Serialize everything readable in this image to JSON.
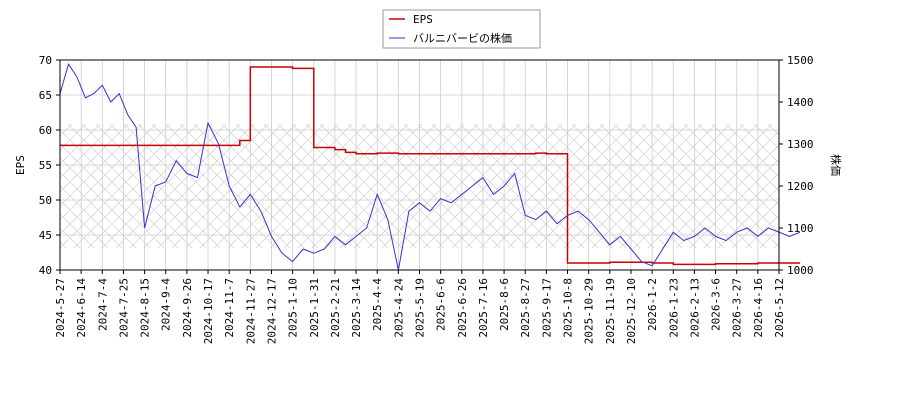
{
  "chart_data": {
    "type": "line",
    "legend_placement": "top-center",
    "grid": true,
    "hatched_band": true,
    "x_tick_labels": [
      "2024-5-27",
      "2024-6-14",
      "2024-7-4",
      "2024-7-25",
      "2024-8-15",
      "2024-9-4",
      "2024-9-26",
      "2024-10-17",
      "2024-11-7",
      "2024-11-27",
      "2024-12-17",
      "2025-1-10",
      "2025-1-31",
      "2025-2-21",
      "2025-3-14",
      "2025-4-4",
      "2025-4-24",
      "2025-5-19",
      "2025-6-6",
      "2025-6-26",
      "2025-7-16",
      "2025-8-6",
      "2025-8-27",
      "2025-9-17",
      "2025-10-8",
      "2025-10-29",
      "2025-11-19",
      "2025-12-10",
      "2026-1-2",
      "2026-1-23",
      "2026-2-13",
      "2026-3-6",
      "2026-3-27",
      "2026-4-16",
      "2026-5-12"
    ],
    "y_left": {
      "label": "EPS",
      "range": [
        40,
        70
      ],
      "ticks": [
        "40",
        "45",
        "50",
        "55",
        "60",
        "65",
        "70"
      ]
    },
    "y_right": {
      "label": "株価",
      "range": [
        1000,
        1500
      ],
      "ticks": [
        "1000",
        "1100",
        "1200",
        "1300",
        "1400",
        "1500"
      ]
    },
    "series": [
      {
        "name": "EPS",
        "color": "#cc0000",
        "axis": "left",
        "x": [
          0,
          2,
          4,
          6,
          8,
          8.5,
          9,
          10,
          11,
          12,
          13,
          13.5,
          14,
          15,
          16,
          17,
          18,
          19,
          20,
          21,
          22,
          22.5,
          23,
          24,
          25,
          26,
          27,
          28,
          29,
          30,
          31,
          32,
          33,
          34,
          35
        ],
        "y": [
          57.8,
          57.8,
          57.8,
          57.8,
          57.8,
          58.5,
          69.0,
          69.0,
          68.8,
          57.5,
          57.2,
          56.8,
          56.6,
          56.7,
          56.6,
          56.6,
          56.6,
          56.6,
          56.6,
          56.6,
          56.6,
          56.7,
          56.6,
          41.0,
          41.0,
          41.1,
          41.1,
          41.0,
          40.8,
          40.8,
          40.9,
          40.9,
          41.0,
          41.0,
          41.0
        ]
      },
      {
        "name": "バルニバービの株価",
        "color": "#3333cc",
        "axis": "right",
        "x": [
          0,
          0.4,
          0.8,
          1.2,
          1.6,
          2,
          2.4,
          2.8,
          3.2,
          3.6,
          4,
          4.5,
          5,
          5.5,
          6,
          6.5,
          7,
          7.5,
          8,
          8.5,
          9,
          9.5,
          10,
          10.5,
          11,
          11.5,
          12,
          12.5,
          13,
          13.5,
          14,
          14.5,
          15,
          15.5,
          16,
          16.5,
          17,
          17.5,
          18,
          18.5,
          19,
          19.5,
          20,
          20.5,
          21,
          21.5,
          22,
          22.5,
          23,
          23.5,
          24,
          24.5,
          25,
          25.5,
          26,
          26.5,
          27,
          27.5,
          28,
          28.5,
          29,
          29.5,
          30,
          30.5,
          31,
          31.5,
          32,
          32.5,
          33,
          33.5,
          34,
          34.5,
          35
        ],
        "y": [
          1420,
          1490,
          1460,
          1410,
          1420,
          1440,
          1400,
          1420,
          1370,
          1340,
          1100,
          1200,
          1210,
          1260,
          1230,
          1220,
          1350,
          1300,
          1200,
          1150,
          1180,
          1140,
          1080,
          1040,
          1020,
          1050,
          1040,
          1050,
          1080,
          1060,
          1080,
          1100,
          1180,
          1120,
          1000,
          1140,
          1160,
          1140,
          1170,
          1160,
          1180,
          1200,
          1220,
          1180,
          1200,
          1230,
          1130,
          1120,
          1140,
          1110,
          1130,
          1140,
          1120,
          1090,
          1060,
          1080,
          1050,
          1020,
          1010,
          1050,
          1090,
          1070,
          1080,
          1100,
          1080,
          1070,
          1090,
          1100,
          1080,
          1100,
          1090,
          1080,
          1090
        ]
      }
    ]
  }
}
